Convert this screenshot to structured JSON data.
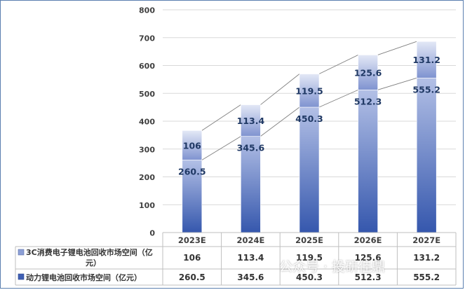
{
  "chart_data": {
    "type": "bar",
    "stacked": true,
    "categories": [
      "2023E",
      "2024E",
      "2025E",
      "2026E",
      "2027E"
    ],
    "series": [
      {
        "name": "动力锂电池回收市场空间（亿元）",
        "values": [
          260.5,
          345.6,
          450.3,
          512.3,
          555.2
        ],
        "color": "#3f5fb3"
      },
      {
        "name": "3C消费电子锂电池回收市场空间（亿元）",
        "values": [
          106,
          113.4,
          119.5,
          125.6,
          131.2
        ],
        "color": "#8c9fd6"
      }
    ],
    "value_labels": {
      "top": [
        "106",
        "113.4",
        "119.5",
        "125.6",
        "131.2"
      ],
      "bottom": [
        "260.5",
        "345.6",
        "450.3",
        "512.3",
        "555.2"
      ]
    },
    "y_ticks": [
      "0",
      "100",
      "200",
      "300",
      "400",
      "500",
      "600",
      "700",
      "800"
    ],
    "ylim": [
      0,
      800
    ],
    "grid": true,
    "trend_lines": true,
    "data_table": {
      "rows": [
        {
          "legend": "3C消费电子锂电池回收市场空间（亿元）",
          "legend_line1": "3C消费电子锂电池回收市场空间（亿",
          "legend_line2": "元）",
          "values": [
            "106",
            "113.4",
            "119.5",
            "125.6",
            "131.2"
          ]
        },
        {
          "legend": "动力锂电池回收市场空间（亿元）",
          "values": [
            "260.5",
            "345.6",
            "450.3",
            "512.3",
            "555.2"
          ]
        }
      ]
    }
  },
  "watermark": {
    "text": "公众号 · 投研佳鼎",
    "icon": "wechat-icon"
  }
}
